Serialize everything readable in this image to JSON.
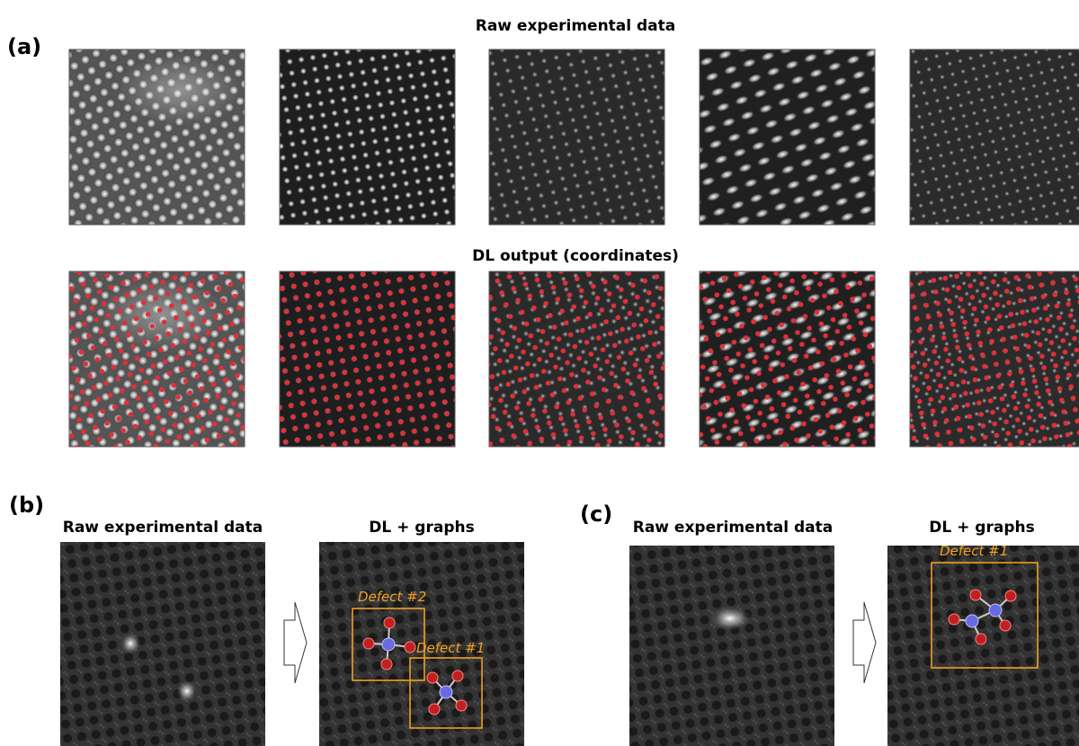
{
  "panel_a": {
    "label": "(a)",
    "row_1_title": "Raw experimental data",
    "row_2_title": "DL output (coordinates)"
  },
  "panel_b": {
    "label": "(b)",
    "left_title": "Raw experimental data",
    "right_title": "DL + graphs",
    "defects": [
      "Defect #2",
      "Defect #1"
    ]
  },
  "panel_c": {
    "label": "(c)",
    "left_title": "Raw experimental data",
    "right_title": "DL + graphs",
    "defects": [
      "Defect #1"
    ]
  }
}
